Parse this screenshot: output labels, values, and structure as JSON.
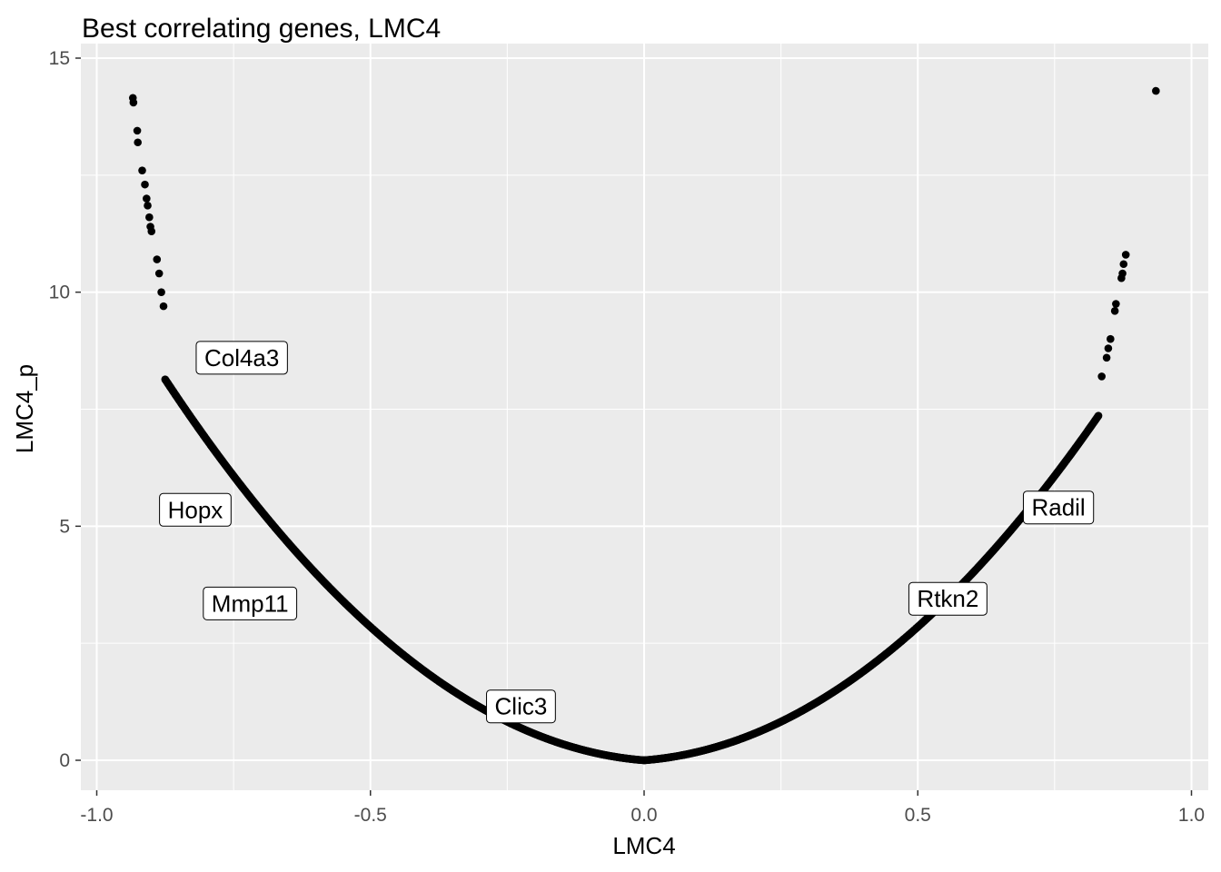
{
  "chart_data": {
    "type": "scatter",
    "title": "Best correlating genes, LMC4",
    "xlabel": "LMC4",
    "ylabel": "LMC4_p",
    "xlim": [
      -1.0,
      1.0
    ],
    "ylim": [
      0,
      15
    ],
    "x_ticks": [
      -1.0,
      -0.5,
      0.0,
      0.5,
      1.0
    ],
    "x_tick_labels": [
      "-1.0",
      "-0.5",
      "0.0",
      "0.5",
      "1.0"
    ],
    "y_ticks": [
      0,
      5,
      10,
      15
    ],
    "y_tick_labels": [
      "0",
      "5",
      "10",
      "15"
    ],
    "grid": true,
    "panel_background": "#ebebeb",
    "grid_color": "#ffffff",
    "point_color": "#000000",
    "points_sparse": [
      {
        "x": -0.934,
        "y": 14.15
      },
      {
        "x": -0.933,
        "y": 14.05
      },
      {
        "x": -0.926,
        "y": 13.45
      },
      {
        "x": -0.925,
        "y": 13.2
      },
      {
        "x": -0.917,
        "y": 12.6
      },
      {
        "x": -0.912,
        "y": 12.3
      },
      {
        "x": -0.909,
        "y": 12.0
      },
      {
        "x": -0.907,
        "y": 11.85
      },
      {
        "x": -0.904,
        "y": 11.6
      },
      {
        "x": -0.902,
        "y": 11.4
      },
      {
        "x": -0.9,
        "y": 11.3
      },
      {
        "x": -0.89,
        "y": 10.7
      },
      {
        "x": -0.886,
        "y": 10.4
      },
      {
        "x": -0.882,
        "y": 10.0
      },
      {
        "x": -0.878,
        "y": 9.7
      },
      {
        "x": 0.935,
        "y": 14.3
      },
      {
        "x": 0.88,
        "y": 10.8
      },
      {
        "x": 0.876,
        "y": 10.6
      },
      {
        "x": 0.874,
        "y": 10.4
      },
      {
        "x": 0.872,
        "y": 10.3
      },
      {
        "x": 0.862,
        "y": 9.75
      },
      {
        "x": 0.86,
        "y": 9.6
      },
      {
        "x": 0.852,
        "y": 9.0
      },
      {
        "x": 0.848,
        "y": 8.8
      },
      {
        "x": 0.845,
        "y": 8.6
      },
      {
        "x": 0.836,
        "y": 8.2
      }
    ],
    "curve_left": {
      "x_min": -0.875,
      "x_max": 0.0,
      "curve_fn": "y = -log10(p) of correlation r, approx y ≈ 9.6*x^2 + 0.9*|x|"
    },
    "curve_right": {
      "x_min": 0.0,
      "x_max": 0.83,
      "curve_fn": "same"
    },
    "labels": [
      {
        "text": "Col4a3",
        "x": -0.735,
        "y": 8.6
      },
      {
        "text": "Hopx",
        "x": -0.82,
        "y": 5.35
      },
      {
        "text": "Mmp11",
        "x": -0.72,
        "y": 3.35
      },
      {
        "text": "Clic3",
        "x": -0.225,
        "y": 1.15
      },
      {
        "text": "Rtkn2",
        "x": 0.555,
        "y": 3.45
      },
      {
        "text": "Radil",
        "x": 0.757,
        "y": 5.4
      }
    ]
  }
}
